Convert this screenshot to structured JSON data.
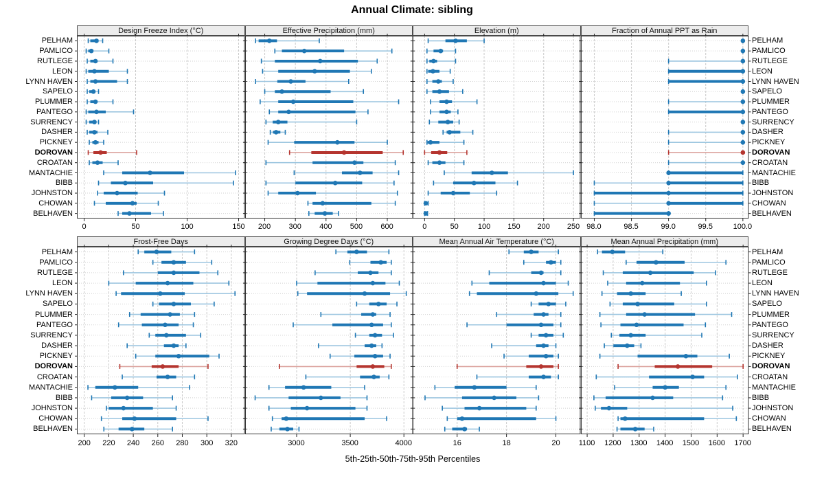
{
  "title": "Annual Climate: sibling",
  "footer": "5th-25th-50th-75th-95th Percentiles",
  "highlight_site": "DOROVAN",
  "percentile_labels": [
    "p5",
    "p25",
    "p50",
    "p75",
    "p95"
  ],
  "sites": [
    "PELHAM",
    "PAMLICO",
    "RUTLEGE",
    "LEON",
    "LYNN HAVEN",
    "SAPELO",
    "PLUMMER",
    "PANTEGO",
    "SURRENCY",
    "DASHER",
    "PICKNEY",
    "DOROVAN",
    "CROATAN",
    "MANTACHIE",
    "BIBB",
    "JOHNSTON",
    "CHOWAN",
    "BELHAVEN"
  ],
  "colors": {
    "series_blue": "#1f77b4",
    "series_blue_light": "#9dc6e0",
    "highlight_red": "#b5352f",
    "highlight_red_light": "#dba29d",
    "grid_vertical": "#c9c9c9",
    "grid_horizontal": "#d2d2d2",
    "strip_bg": "#ececec",
    "panel_border": "#333333",
    "tick": "#222222"
  },
  "chart_data": [
    {
      "type": "dot-whisker",
      "panel": "Design Freeze Index (°C)",
      "slug": "design-freeze-index",
      "row": 0,
      "col": 0,
      "xlim": [
        -7,
        156
      ],
      "ticks": [
        0,
        50,
        100,
        150
      ],
      "tick_labels": [
        "0",
        "50",
        "100",
        "150"
      ],
      "values": [
        [
          4,
          6,
          12,
          14,
          18
        ],
        [
          2,
          4,
          7,
          9,
          24
        ],
        [
          3,
          6,
          11,
          13,
          28
        ],
        [
          2,
          4,
          10,
          24,
          42
        ],
        [
          3,
          6,
          11,
          32,
          42
        ],
        [
          3,
          5,
          9,
          11,
          14
        ],
        [
          3,
          6,
          11,
          13,
          28
        ],
        [
          2,
          4,
          12,
          21,
          48
        ],
        [
          2,
          5,
          10,
          12,
          14
        ],
        [
          3,
          5,
          10,
          13,
          23
        ],
        [
          5,
          8,
          11,
          14,
          19
        ],
        [
          4,
          9,
          16,
          22,
          51
        ],
        [
          5,
          8,
          13,
          18,
          33
        ],
        [
          19,
          37,
          64,
          97,
          147
        ],
        [
          14,
          26,
          40,
          67,
          145
        ],
        [
          13,
          19,
          32,
          52,
          78
        ],
        [
          10,
          21,
          47,
          51,
          72
        ],
        [
          33,
          37,
          44,
          65,
          77
        ]
      ]
    },
    {
      "type": "dot-whisker",
      "panel": "Effective Precipitation (mm)",
      "slug": "effective-precipitation",
      "row": 0,
      "col": 1,
      "xlim": [
        136,
        684
      ],
      "ticks": [
        200,
        300,
        400,
        500,
        600
      ],
      "tick_labels": [
        "200",
        "300",
        "400",
        "500",
        "600"
      ],
      "values": [
        [
          170,
          180,
          215,
          240,
          378
        ],
        [
          233,
          256,
          329,
          459,
          615
        ],
        [
          189,
          233,
          381,
          504,
          567
        ],
        [
          193,
          244,
          363,
          478,
          548
        ],
        [
          170,
          241,
          285,
          333,
          474
        ],
        [
          200,
          233,
          256,
          415,
          522
        ],
        [
          185,
          244,
          293,
          489,
          637
        ],
        [
          215,
          244,
          278,
          496,
          537
        ],
        [
          204,
          226,
          244,
          274,
          500
        ],
        [
          218,
          227,
          237,
          251,
          267
        ],
        [
          211,
          296,
          437,
          493,
          600
        ],
        [
          281,
          352,
          459,
          585,
          652
        ],
        [
          204,
          356,
          493,
          522,
          626
        ],
        [
          296,
          452,
          511,
          552,
          637
        ],
        [
          204,
          300,
          430,
          518,
          622
        ],
        [
          211,
          244,
          307,
          367,
          633
        ],
        [
          341,
          356,
          389,
          548,
          626
        ],
        [
          344,
          363,
          396,
          422,
          441
        ]
      ]
    },
    {
      "type": "dot-whisker",
      "panel": "Elevation (m)",
      "slug": "elevation",
      "row": 0,
      "col": 2,
      "xlim": [
        -20,
        262
      ],
      "ticks": [
        0,
        50,
        100,
        150,
        200,
        250
      ],
      "tick_labels": [
        "0",
        "50",
        "100",
        "150",
        "200",
        "250"
      ],
      "values": [
        [
          6,
          35,
          52,
          71,
          100
        ],
        [
          4,
          15,
          27,
          31,
          52
        ],
        [
          4,
          8,
          15,
          21,
          52
        ],
        [
          4,
          6,
          14,
          25,
          43
        ],
        [
          4,
          13,
          23,
          29,
          48
        ],
        [
          4,
          13,
          25,
          41,
          64
        ],
        [
          10,
          25,
          37,
          46,
          88
        ],
        [
          10,
          25,
          37,
          44,
          56
        ],
        [
          8,
          23,
          39,
          48,
          58
        ],
        [
          31,
          37,
          42,
          60,
          81
        ],
        [
          4,
          5,
          10,
          25,
          66
        ],
        [
          0,
          11,
          25,
          38,
          71
        ],
        [
          6,
          13,
          25,
          35,
          66
        ],
        [
          33,
          79,
          113,
          140,
          250
        ],
        [
          15,
          48,
          83,
          119,
          156
        ],
        [
          6,
          27,
          48,
          76,
          121
        ],
        [
          0,
          1,
          2,
          4,
          6
        ],
        [
          0,
          1,
          2,
          3,
          5
        ]
      ]
    },
    {
      "type": "dot-whisker",
      "panel": "Fraction of Annual PPT as Rain",
      "slug": "fraction-ppt-rain",
      "row": 0,
      "col": 3,
      "xlim": [
        97.82,
        100.08
      ],
      "ticks": [
        98.0,
        98.5,
        99.0,
        99.5,
        100.0
      ],
      "tick_labels": [
        "98.0",
        "98.5",
        "99.0",
        "99.5",
        "100.0"
      ],
      "values": [
        [
          100,
          100,
          100,
          100,
          100
        ],
        [
          100,
          100,
          100,
          100,
          100
        ],
        [
          99,
          100,
          100,
          100,
          100
        ],
        [
          99,
          99,
          100,
          100,
          100
        ],
        [
          99,
          99,
          100,
          100,
          100
        ],
        [
          100,
          100,
          100,
          100,
          100
        ],
        [
          99,
          100,
          100,
          100,
          100
        ],
        [
          99,
          99,
          100,
          100,
          100
        ],
        [
          100,
          100,
          100,
          100,
          100
        ],
        [
          99,
          100,
          100,
          100,
          100
        ],
        [
          99,
          100,
          100,
          100,
          100
        ],
        [
          99,
          100,
          100,
          100,
          100
        ],
        [
          99,
          100,
          100,
          100,
          100
        ],
        [
          99,
          99,
          99,
          100,
          100
        ],
        [
          98,
          99,
          99,
          100,
          100
        ],
        [
          98,
          98,
          99,
          100,
          100
        ],
        [
          98,
          99,
          99,
          100,
          100
        ],
        [
          98,
          98,
          99,
          99,
          99
        ]
      ]
    },
    {
      "type": "dot-whisker",
      "panel": "Frost-Free Days",
      "slug": "frost-free-days",
      "row": 1,
      "col": 0,
      "xlim": [
        194,
        331
      ],
      "ticks": [
        200,
        220,
        240,
        260,
        280,
        300,
        320
      ],
      "tick_labels": [
        "200",
        "220",
        "240",
        "260",
        "280",
        "300",
        "320"
      ],
      "values": [
        [
          244,
          249,
          259,
          271,
          290
        ],
        [
          256,
          263,
          273,
          283,
          304
        ],
        [
          232,
          260,
          273,
          294,
          309
        ],
        [
          220,
          242,
          268,
          289,
          318
        ],
        [
          226,
          230,
          262,
          282,
          323
        ],
        [
          256,
          261,
          273,
          287,
          306
        ],
        [
          237,
          246,
          270,
          278,
          290
        ],
        [
          228,
          247,
          266,
          277,
          289
        ],
        [
          253,
          258,
          267,
          283,
          295
        ],
        [
          235,
          265,
          273,
          277,
          283
        ],
        [
          242,
          258,
          277,
          302,
          310
        ],
        [
          229,
          255,
          264,
          277,
          301
        ],
        [
          231,
          259,
          268,
          275,
          290
        ],
        [
          203,
          209,
          225,
          244,
          286
        ],
        [
          206,
          222,
          235,
          248,
          272
        ],
        [
          218,
          220,
          232,
          256,
          275
        ],
        [
          214,
          231,
          241,
          275,
          301
        ],
        [
          216,
          228,
          239,
          249,
          272
        ]
      ]
    },
    {
      "type": "dot-whisker",
      "panel": "Growing Degree Days (°C)",
      "slug": "growing-degree-days",
      "row": 1,
      "col": 1,
      "xlim": [
        2520,
        4085
      ],
      "ticks": [
        3000,
        3500,
        4000
      ],
      "tick_labels": [
        "3000",
        "3500",
        "4000"
      ],
      "values": [
        [
          3366,
          3473,
          3559,
          3656,
          3860
        ],
        [
          3495,
          3688,
          3785,
          3839,
          3882
        ],
        [
          3172,
          3570,
          3688,
          3763,
          3882
        ],
        [
          3000,
          3194,
          3710,
          3828,
          3957
        ],
        [
          3011,
          3097,
          3634,
          3871,
          4022
        ],
        [
          3559,
          3677,
          3763,
          3839,
          3935
        ],
        [
          3226,
          3602,
          3710,
          3742,
          3871
        ],
        [
          2968,
          3333,
          3699,
          3806,
          3882
        ],
        [
          3548,
          3677,
          3731,
          3796,
          3903
        ],
        [
          3204,
          3634,
          3699,
          3742,
          3796
        ],
        [
          3312,
          3538,
          3731,
          3806,
          3871
        ],
        [
          2839,
          3559,
          3710,
          3817,
          3882
        ],
        [
          3086,
          3591,
          3720,
          3774,
          3860
        ],
        [
          2742,
          2892,
          3065,
          3323,
          3634
        ],
        [
          2613,
          2925,
          3226,
          3409,
          3656
        ],
        [
          2742,
          2946,
          3097,
          3548,
          3656
        ],
        [
          2774,
          2860,
          2903,
          3634,
          3839
        ],
        [
          2763,
          2839,
          2914,
          2968,
          3022
        ]
      ]
    },
    {
      "type": "dot-whisker",
      "panel": "Mean Annual Air Temperature (°C)",
      "slug": "mean-annual-air-temperature",
      "row": 1,
      "col": 2,
      "xlim": [
        14.2,
        21.0
      ],
      "ticks": [
        16,
        18,
        20
      ],
      "tick_labels": [
        "16",
        "18",
        "20"
      ],
      "values": [
        [
          18.1,
          18.7,
          19.0,
          19.3,
          20.1
        ],
        [
          18.7,
          19.6,
          19.8,
          20.0,
          20.2
        ],
        [
          17.3,
          19.0,
          19.4,
          19.5,
          20.2
        ],
        [
          16.6,
          17.3,
          19.5,
          20.0,
          20.5
        ],
        [
          16.5,
          16.8,
          19.2,
          20.1,
          20.7
        ],
        [
          19.0,
          19.3,
          19.7,
          20.0,
          20.4
        ],
        [
          17.6,
          19.1,
          19.5,
          19.7,
          20.2
        ],
        [
          16.4,
          18.0,
          19.4,
          19.9,
          20.2
        ],
        [
          19.0,
          19.3,
          19.6,
          19.9,
          20.3
        ],
        [
          17.4,
          19.2,
          19.5,
          19.7,
          20.0
        ],
        [
          17.9,
          18.9,
          19.6,
          19.9,
          20.1
        ],
        [
          16.0,
          18.8,
          19.4,
          19.9,
          20.1
        ],
        [
          16.8,
          18.9,
          19.5,
          19.8,
          20.1
        ],
        [
          15.1,
          15.9,
          16.7,
          18.0,
          19.2
        ],
        [
          14.7,
          16.2,
          17.5,
          18.4,
          19.3
        ],
        [
          15.4,
          16.3,
          16.9,
          18.8,
          19.2
        ],
        [
          15.6,
          16.0,
          16.2,
          19.2,
          20.0
        ],
        [
          15.5,
          15.8,
          16.3,
          16.4,
          16.9
        ]
      ]
    },
    {
      "type": "dot-whisker",
      "panel": "Mean Annual Precipitation (mm)",
      "slug": "mean-annual-precipitation",
      "row": 1,
      "col": 3,
      "xlim": [
        1076,
        1722
      ],
      "ticks": [
        1100,
        1200,
        1300,
        1400,
        1500,
        1600,
        1700
      ],
      "tick_labels": [
        "1100",
        "1200",
        "1300",
        "1400",
        "1500",
        "1600",
        "1700"
      ],
      "values": [
        [
          1140,
          1157,
          1197,
          1246,
          1391
        ],
        [
          1250,
          1290,
          1365,
          1475,
          1634
        ],
        [
          1162,
          1237,
          1343,
          1510,
          1594
        ],
        [
          1179,
          1250,
          1312,
          1457,
          1559
        ],
        [
          1157,
          1215,
          1268,
          1325,
          1462
        ],
        [
          1188,
          1237,
          1294,
          1435,
          1559
        ],
        [
          1149,
          1250,
          1321,
          1515,
          1656
        ],
        [
          1153,
          1228,
          1290,
          1471,
          1555
        ],
        [
          1193,
          1224,
          1268,
          1325,
          1541
        ],
        [
          1166,
          1201,
          1254,
          1281,
          1307
        ],
        [
          1149,
          1294,
          1480,
          1524,
          1647
        ],
        [
          1219,
          1360,
          1449,
          1581,
          1700
        ],
        [
          1135,
          1338,
          1506,
          1550,
          1678
        ],
        [
          1206,
          1352,
          1400,
          1453,
          1634
        ],
        [
          1126,
          1171,
          1352,
          1431,
          1621
        ],
        [
          1131,
          1153,
          1184,
          1254,
          1660
        ],
        [
          1219,
          1228,
          1246,
          1550,
          1674
        ],
        [
          1215,
          1228,
          1285,
          1321,
          1356
        ]
      ]
    }
  ]
}
